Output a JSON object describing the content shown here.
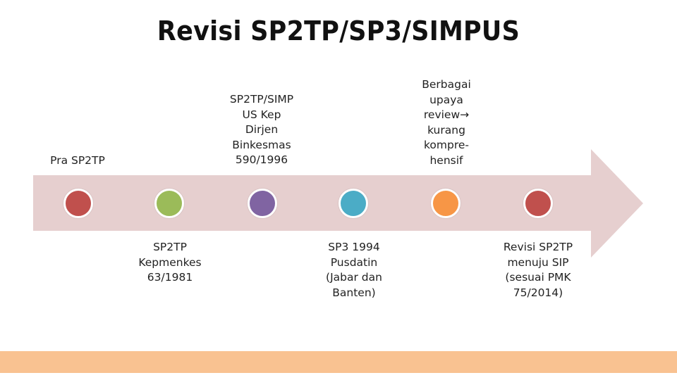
{
  "slide": {
    "title": "Revisi SP2TP/SP3/SIMPUS"
  },
  "colors": {
    "arrow": "#e6cfcf",
    "footer": "#f9c291",
    "text": "#222222"
  },
  "timeline": {
    "events": [
      {
        "label": "Pra SP2TP",
        "position": "above",
        "color": "#c0504d"
      },
      {
        "label": "SP2TP\nKepmenkes\n63/1981",
        "position": "below",
        "color": "#9bbb59"
      },
      {
        "label": "SP2TP/SIMP\nUS    Kep\nDirjen\nBinkesmas\n590/1996",
        "position": "above",
        "color": "#8064a2"
      },
      {
        "label": "SP3 1994\nPusdatin\n(Jabar dan\nBanten)",
        "position": "below",
        "color": "#4bacc6"
      },
      {
        "label": "Berbagai\nupaya\nreview→\nkurang\nkompre-\nhensif",
        "position": "above",
        "color": "#f79646"
      },
      {
        "label": "Revisi SP2TP\nmenuju SIP\n(sesuai PMK\n75/2014)",
        "position": "below",
        "color": "#c0504d"
      }
    ]
  }
}
